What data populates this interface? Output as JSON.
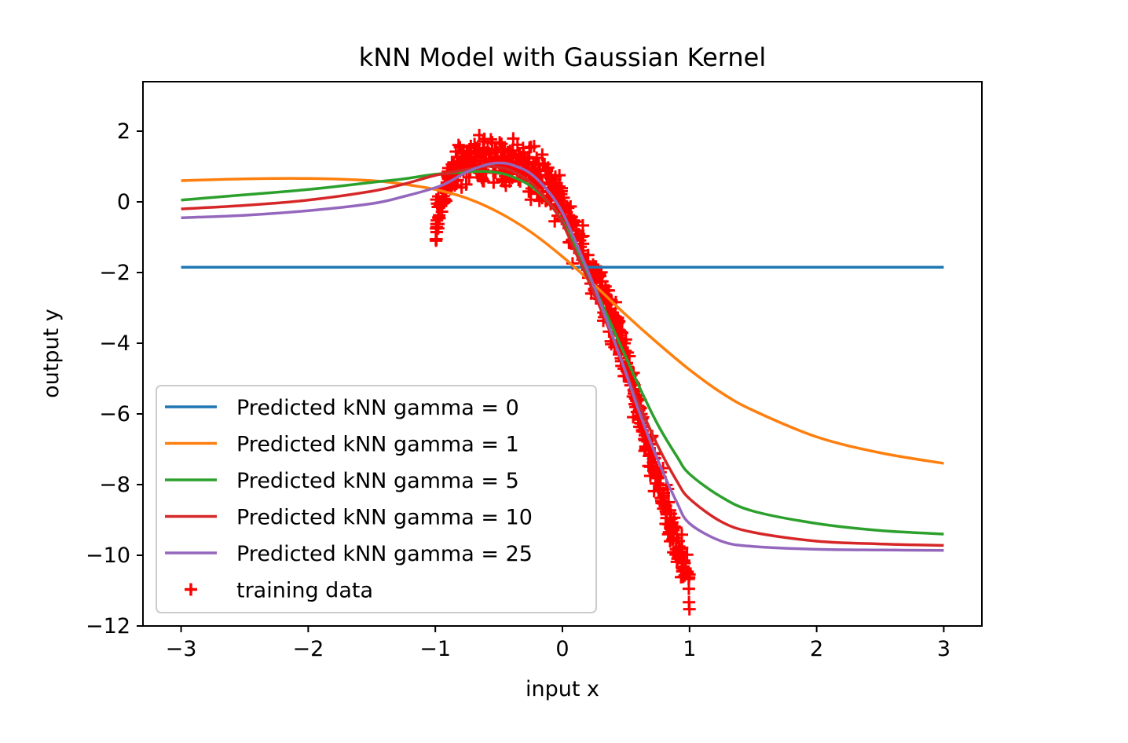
{
  "chart_data": {
    "type": "line",
    "title": "kNN Model with Gaussian Kernel",
    "xlabel": "input x",
    "ylabel": "output y",
    "xlim": [
      -3.3,
      3.3
    ],
    "ylim": [
      -12.0,
      3.4
    ],
    "xticks": [
      -3,
      -2,
      -1,
      0,
      1,
      2,
      3
    ],
    "xtick_labels": [
      "−3",
      "−2",
      "−1",
      "0",
      "1",
      "2",
      "3"
    ],
    "yticks": [
      -12,
      -10,
      -8,
      -6,
      -4,
      -2,
      0,
      2
    ],
    "ytick_labels": [
      "−12",
      "−10",
      "−8",
      "−6",
      "−4",
      "−2",
      "0",
      "2"
    ],
    "grid": false,
    "legend_position": "lower-left",
    "series": [
      {
        "name": "Predicted kNN gamma = 0",
        "color": "#1f77b4",
        "x": [
          -3,
          -2,
          -1,
          0,
          1,
          2,
          3
        ],
        "y": [
          -1.85,
          -1.85,
          -1.85,
          -1.85,
          -1.85,
          -1.85,
          -1.85
        ]
      },
      {
        "name": "Predicted kNN gamma = 1",
        "color": "#ff7f0e",
        "x": [
          -3.0,
          -2.5,
          -2.0,
          -1.5,
          -1.25,
          -1.0,
          -0.75,
          -0.5,
          -0.25,
          0.0,
          0.25,
          0.5,
          0.75,
          1.0,
          1.25,
          1.5,
          2.0,
          2.5,
          3.0
        ],
        "y": [
          0.6,
          0.65,
          0.66,
          0.6,
          0.5,
          0.35,
          0.1,
          -0.3,
          -0.85,
          -1.55,
          -2.35,
          -3.2,
          -4.0,
          -4.75,
          -5.4,
          -5.9,
          -6.65,
          -7.1,
          -7.4
        ]
      },
      {
        "name": "Predicted kNN gamma = 5",
        "color": "#2ca02c",
        "x": [
          -3.0,
          -2.5,
          -2.0,
          -1.5,
          -1.25,
          -1.0,
          -0.75,
          -0.6,
          -0.5,
          -0.4,
          -0.25,
          -0.1,
          0.0,
          0.1,
          0.25,
          0.4,
          0.5,
          0.6,
          0.75,
          0.9,
          1.0,
          1.25,
          1.5,
          2.0,
          2.5,
          3.0
        ],
        "y": [
          0.05,
          0.2,
          0.35,
          0.55,
          0.65,
          0.78,
          0.85,
          0.86,
          0.82,
          0.72,
          0.45,
          -0.05,
          -0.55,
          -1.25,
          -2.4,
          -3.6,
          -4.4,
          -5.2,
          -6.3,
          -7.2,
          -7.7,
          -8.35,
          -8.75,
          -9.1,
          -9.3,
          -9.4
        ]
      },
      {
        "name": "Predicted kNN gamma = 10",
        "color": "#d62728",
        "x": [
          -3.0,
          -2.5,
          -2.0,
          -1.5,
          -1.25,
          -1.0,
          -0.75,
          -0.6,
          -0.5,
          -0.4,
          -0.25,
          -0.1,
          0.0,
          0.1,
          0.25,
          0.4,
          0.5,
          0.6,
          0.75,
          0.9,
          1.0,
          1.25,
          1.5,
          2.0,
          2.5,
          3.0
        ],
        "y": [
          -0.2,
          -0.1,
          0.05,
          0.3,
          0.5,
          0.75,
          0.92,
          1.0,
          0.98,
          0.88,
          0.55,
          -0.05,
          -0.6,
          -1.4,
          -2.6,
          -3.9,
          -4.8,
          -5.7,
          -6.9,
          -7.9,
          -8.4,
          -9.05,
          -9.35,
          -9.6,
          -9.68,
          -9.72
        ]
      },
      {
        "name": "Predicted kNN gamma = 25",
        "color": "#9467bd",
        "x": [
          -3.0,
          -2.5,
          -2.0,
          -1.5,
          -1.25,
          -1.0,
          -0.9,
          -0.75,
          -0.6,
          -0.5,
          -0.4,
          -0.25,
          -0.1,
          0.0,
          0.1,
          0.25,
          0.4,
          0.5,
          0.6,
          0.75,
          0.9,
          1.0,
          1.25,
          1.5,
          2.0,
          2.5,
          3.0
        ],
        "y": [
          -0.45,
          -0.38,
          -0.25,
          -0.05,
          0.15,
          0.4,
          0.55,
          0.85,
          1.05,
          1.1,
          1.05,
          0.8,
          0.25,
          -0.3,
          -1.1,
          -2.4,
          -3.85,
          -4.85,
          -5.9,
          -7.3,
          -8.5,
          -9.1,
          -9.6,
          -9.75,
          -9.83,
          -9.85,
          -9.86
        ]
      }
    ],
    "scatter": {
      "name": "training data",
      "color": "#ff0000",
      "marker": "+",
      "x_range": [
        -1.0,
        1.0
      ],
      "envelope_x": [
        -1.0,
        -0.9,
        -0.8,
        -0.7,
        -0.6,
        -0.5,
        -0.4,
        -0.3,
        -0.2,
        -0.1,
        0.0,
        0.1,
        0.2,
        0.3,
        0.4,
        0.5,
        0.6,
        0.7,
        0.8,
        0.9,
        1.0
      ],
      "envelope_y": [
        -0.6,
        0.5,
        1.1,
        1.25,
        1.15,
        1.2,
        1.2,
        1.05,
        0.75,
        0.45,
        -0.15,
        -0.9,
        -1.75,
        -2.6,
        -3.4,
        -4.5,
        -5.9,
        -7.2,
        -8.5,
        -9.7,
        -10.8
      ],
      "noise": 0.55
    }
  }
}
